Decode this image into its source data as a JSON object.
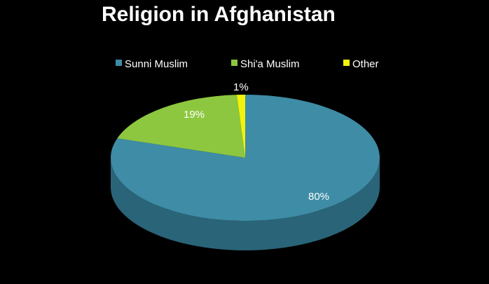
{
  "chart_data": {
    "type": "pie",
    "title": "Religion in Afghanistan",
    "legend_position": "top",
    "slices": [
      {
        "label": "Sunni Muslim",
        "value": 80,
        "display": "80%",
        "color": "#3e8ca5",
        "side_color": "#2a6478"
      },
      {
        "label": "Shi'a Muslim",
        "value": 19,
        "display": "19%",
        "color": "#8dc73f",
        "side_color": "#5f8a28"
      },
      {
        "label": "Other",
        "value": 1,
        "display": "1%",
        "color": "#f2f20a",
        "side_color": "#b3b306"
      }
    ]
  }
}
